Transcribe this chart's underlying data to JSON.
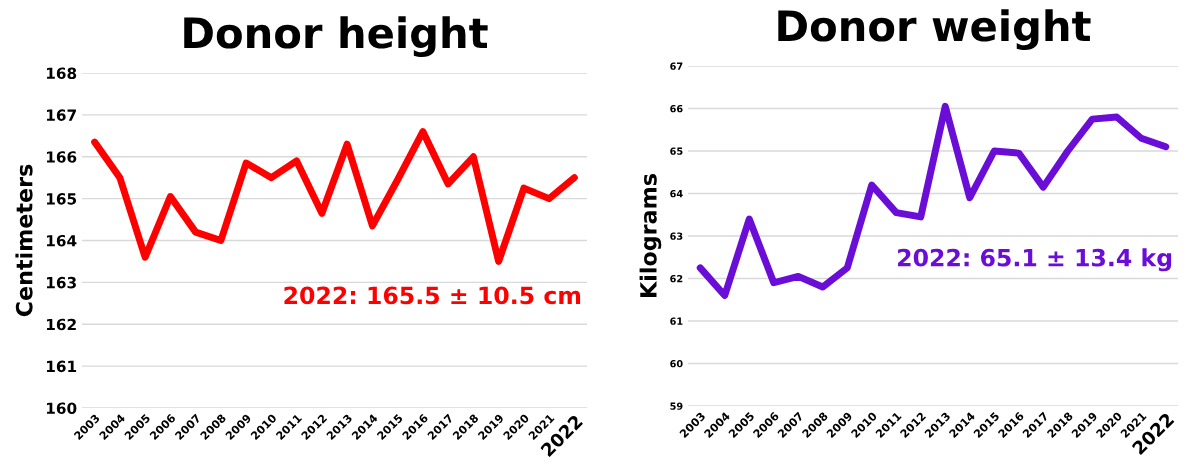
{
  "chart_data": [
    {
      "type": "line",
      "title": "Donor height",
      "ylabel": "Centimeters",
      "categories": [
        "2003",
        "2004",
        "2005",
        "2006",
        "2007",
        "2008",
        "2009",
        "2010",
        "2011",
        "2012",
        "2013",
        "2014",
        "2015",
        "2016",
        "2017",
        "2018",
        "2019",
        "2020",
        "2021",
        "2022"
      ],
      "series": [
        {
          "color": "#ff0000",
          "values": [
            166.35,
            165.5,
            163.6,
            165.05,
            164.2,
            164.0,
            165.85,
            165.5,
            165.9,
            164.65,
            166.3,
            164.35,
            165.45,
            166.6,
            165.35,
            166.0,
            163.5,
            165.25,
            165.0,
            165.5
          ]
        }
      ],
      "ylim": [
        160,
        168
      ],
      "yticks": [
        160,
        161,
        162,
        163,
        164,
        165,
        166,
        167,
        168
      ],
      "grid": "y",
      "legend": false,
      "marker": "none",
      "line_style": "solid",
      "annotations": [
        "2022: 165.5 ± 10.5 cm"
      ]
    },
    {
      "type": "line",
      "title": "Donor weight",
      "ylabel": "Kilograms",
      "categories": [
        "2003",
        "2004",
        "2005",
        "2006",
        "2007",
        "2008",
        "2009",
        "2010",
        "2011",
        "2012",
        "2013",
        "2014",
        "2015",
        "2016",
        "2017",
        "2018",
        "2019",
        "2020",
        "2021",
        "2022"
      ],
      "series": [
        {
          "color": "#6a0dd6",
          "values": [
            62.25,
            61.6,
            63.4,
            61.9,
            62.05,
            61.8,
            62.25,
            64.2,
            63.55,
            63.45,
            66.05,
            63.9,
            65.0,
            64.95,
            64.15,
            65.0,
            65.75,
            65.8,
            65.3,
            65.1
          ]
        }
      ],
      "ylim": [
        59,
        67
      ],
      "yticks": [
        59,
        60,
        61,
        62,
        63,
        64,
        65,
        66,
        67
      ],
      "grid": "y",
      "legend": false,
      "marker": "none",
      "line_style": "solid",
      "annotations": [
        "2022: 65.1 ± 13.4 kg"
      ]
    }
  ]
}
